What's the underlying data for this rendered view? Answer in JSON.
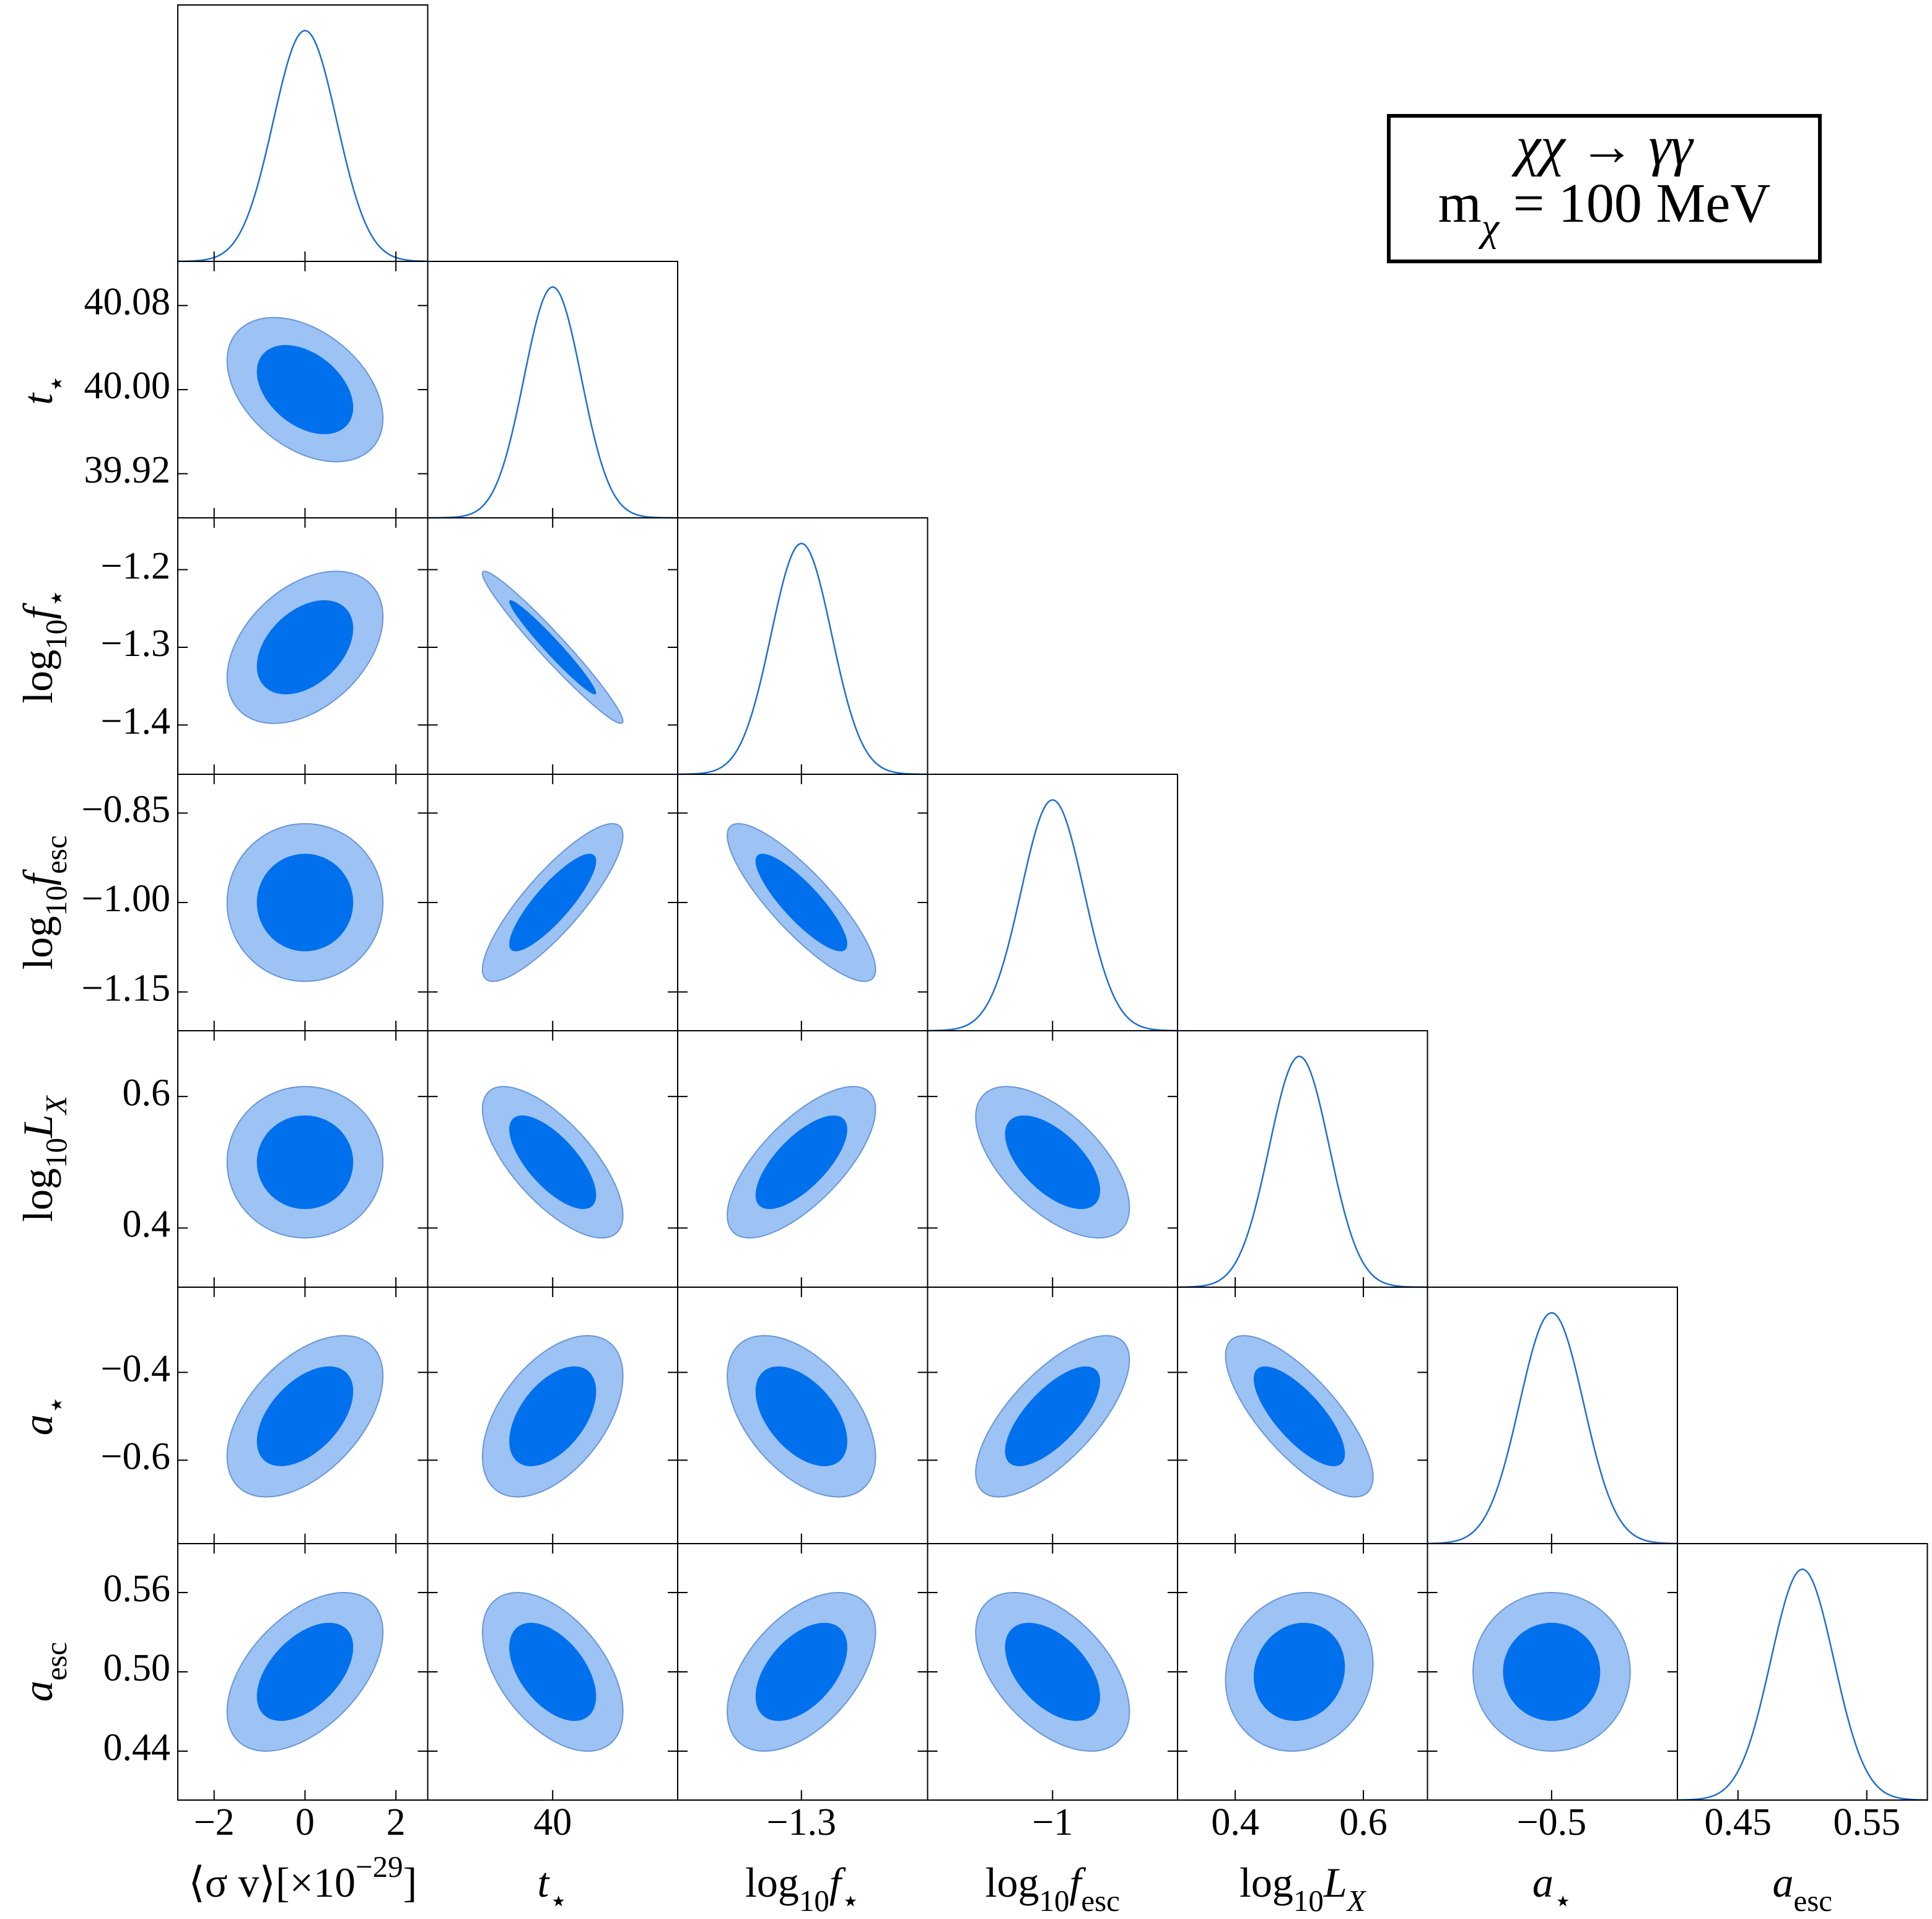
{
  "chart_data": {
    "type": "corner",
    "colors": {
      "inner": "#0070ec",
      "outer": "#9cc3f4",
      "edge": "#6a96d6",
      "line": "#1f6fd2"
    },
    "annotation": [
      [
        {
          "text": "χχ → γγ",
          "style": "italic"
        }
      ],
      [
        {
          "text": "m",
          "style": "normal"
        },
        {
          "text": "χ",
          "style": "italic-sub"
        },
        {
          "text": " = 100 MeV",
          "style": "normal"
        }
      ]
    ],
    "parameters": [
      {
        "label": [
          {
            "text": "⟨σ v⟩[×10",
            "style": "normal"
          },
          {
            "text": "−29",
            "style": "sup"
          },
          {
            "text": "]",
            "style": "normal"
          }
        ],
        "lim": [
          -2.8,
          2.7
        ],
        "mean": 0,
        "sigma": 0.7,
        "xticks": [
          {
            "value": -2,
            "label": "−2"
          },
          0,
          2
        ],
        "yticks": []
      },
      {
        "label": [
          {
            "text": "t",
            "style": "italic"
          },
          {
            "text": "⋆",
            "style": "sub"
          }
        ],
        "lim": [
          39.878,
          40.122
        ],
        "mean": 40,
        "sigma": 0.028,
        "xticks": [
          40
        ],
        "yticks": [
          40.08,
          {
            "value": 40,
            "label": "40.00"
          },
          39.92
        ]
      },
      {
        "label": [
          {
            "text": "log",
            "style": "normal"
          },
          {
            "text": "10",
            "style": "sub"
          },
          {
            "text": "f",
            "style": "italic"
          },
          {
            "text": "⋆",
            "style": "sub"
          }
        ],
        "lim": [
          -1.4635,
          -1.1333
        ],
        "mean": -1.3,
        "sigma": 0.04,
        "xticks": [
          {
            "value": -1.3,
            "label": "−1.3"
          }
        ],
        "yticks": [
          {
            "value": -1.2,
            "label": "−1.2"
          },
          {
            "value": -1.3,
            "label": "−1.3"
          },
          {
            "value": -1.4,
            "label": "−1.4"
          }
        ]
      },
      {
        "label": [
          {
            "text": "log",
            "style": "normal"
          },
          {
            "text": "10",
            "style": "sub"
          },
          {
            "text": "f",
            "style": "italic"
          },
          {
            "text": "esc",
            "style": "sub"
          }
        ],
        "lim": [
          -1.215,
          -0.785
        ],
        "mean": -1,
        "sigma": 0.054,
        "xticks": [
          {
            "value": -1,
            "label": "−1"
          }
        ],
        "yticks": [
          {
            "value": -0.85,
            "label": "−0.85"
          },
          {
            "value": -1,
            "label": "−1.00"
          },
          {
            "value": -1.15,
            "label": "−1.15"
          }
        ]
      },
      {
        "label": [
          {
            "text": "log",
            "style": "normal"
          },
          {
            "text": "10",
            "style": "sub"
          },
          {
            "text": "L",
            "style": "italic"
          },
          {
            "text": "X",
            "style": "italic-sub"
          }
        ],
        "lim": [
          0.31,
          0.7
        ],
        "mean": 0.5,
        "sigma": 0.047,
        "xticks": [
          0.4,
          0.6
        ],
        "yticks": [
          0.6,
          0.4
        ]
      },
      {
        "label": [
          {
            "text": "a",
            "style": "italic"
          },
          {
            "text": "⋆",
            "style": "sub"
          }
        ],
        "lim": [
          -0.79,
          -0.206
        ],
        "mean": -0.5,
        "sigma": 0.075,
        "xticks": [
          {
            "value": -0.5,
            "label": "−0.5"
          }
        ],
        "yticks": [
          {
            "value": -0.4,
            "label": "−0.4"
          },
          {
            "value": -0.6,
            "label": "−0.6"
          }
        ]
      },
      {
        "label": [
          {
            "text": "a",
            "style": "italic"
          },
          {
            "text": "esc",
            "style": "sub"
          }
        ],
        "lim": [
          0.403,
          0.597
        ],
        "mean": 0.5,
        "sigma": 0.0245,
        "xticks": [
          0.45,
          0.55
        ],
        "yticks": [
          0.56,
          {
            "value": 0.5,
            "label": "0.50"
          },
          0.44
        ]
      }
    ],
    "correlations": [
      [
        -0.4
      ],
      [
        0.4,
        -0.97
      ],
      [
        0,
        0.85,
        -0.85
      ],
      [
        0,
        -0.7,
        0.7,
        -0.6
      ],
      [
        0.5,
        0.5,
        -0.5,
        0.7,
        -0.75
      ],
      [
        0.5,
        -0.5,
        0.5,
        -0.5,
        0.1,
        0
      ]
    ]
  }
}
